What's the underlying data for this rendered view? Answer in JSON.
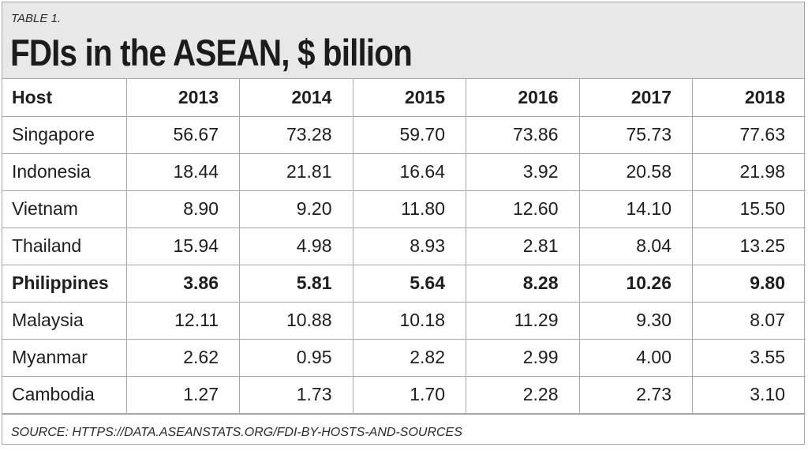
{
  "header": {
    "kicker": "TABLE 1.",
    "title": "FDIs in the ASEAN, $ billion"
  },
  "table": {
    "columns": [
      "Host",
      "2013",
      "2014",
      "2015",
      "2016",
      "2017",
      "2018"
    ],
    "rows": [
      {
        "host": "Singapore",
        "bold": false,
        "values": [
          "56.67",
          "73.28",
          "59.70",
          "73.86",
          "75.73",
          "77.63"
        ]
      },
      {
        "host": "Indonesia",
        "bold": false,
        "values": [
          "18.44",
          "21.81",
          "16.64",
          "3.92",
          "20.58",
          "21.98"
        ]
      },
      {
        "host": "Vietnam",
        "bold": false,
        "values": [
          "8.90",
          "9.20",
          "11.80",
          "12.60",
          "14.10",
          "15.50"
        ]
      },
      {
        "host": "Thailand",
        "bold": false,
        "values": [
          "15.94",
          "4.98",
          "8.93",
          "2.81",
          "8.04",
          "13.25"
        ]
      },
      {
        "host": "Philippines",
        "bold": true,
        "values": [
          "3.86",
          "5.81",
          "5.64",
          "8.28",
          "10.26",
          "9.80"
        ]
      },
      {
        "host": "Malaysia",
        "bold": false,
        "values": [
          "12.11",
          "10.88",
          "10.18",
          "11.29",
          "9.30",
          "8.07"
        ]
      },
      {
        "host": "Myanmar",
        "bold": false,
        "values": [
          "2.62",
          "0.95",
          "2.82",
          "2.99",
          "4.00",
          "3.55"
        ]
      },
      {
        "host": "Cambodia",
        "bold": false,
        "values": [
          "1.27",
          "1.73",
          "1.70",
          "2.28",
          "2.73",
          "3.10"
        ]
      }
    ]
  },
  "source": "SOURCE: HTTPS://DATA.ASEANSTATS.ORG/FDI-BY-HOSTS-AND-SOURCES",
  "colors": {
    "header_bg": "#e8e8e8",
    "border": "#a8a8a8",
    "text": "#1e1e1e"
  },
  "chart_data": {
    "type": "table",
    "title": "FDIs in the ASEAN, $ billion",
    "subtitle": "TABLE 1.",
    "categories": [
      "2013",
      "2014",
      "2015",
      "2016",
      "2017",
      "2018"
    ],
    "row_header": "Host",
    "series": [
      {
        "name": "Singapore",
        "values": [
          56.67,
          73.28,
          59.7,
          73.86,
          75.73,
          77.63
        ]
      },
      {
        "name": "Indonesia",
        "values": [
          18.44,
          21.81,
          16.64,
          3.92,
          20.58,
          21.98
        ]
      },
      {
        "name": "Vietnam",
        "values": [
          8.9,
          9.2,
          11.8,
          12.6,
          14.1,
          15.5
        ]
      },
      {
        "name": "Thailand",
        "values": [
          15.94,
          4.98,
          8.93,
          2.81,
          8.04,
          13.25
        ]
      },
      {
        "name": "Philippines",
        "values": [
          3.86,
          5.81,
          5.64,
          8.28,
          10.26,
          9.8
        ],
        "highlighted": true
      },
      {
        "name": "Malaysia",
        "values": [
          12.11,
          10.88,
          10.18,
          11.29,
          9.3,
          8.07
        ]
      },
      {
        "name": "Myanmar",
        "values": [
          2.62,
          0.95,
          2.82,
          2.99,
          4.0,
          3.55
        ]
      },
      {
        "name": "Cambodia",
        "values": [
          1.27,
          1.73,
          1.7,
          2.28,
          2.73,
          3.1
        ]
      }
    ],
    "unit": "$ billion",
    "source": "SOURCE: HTTPS://DATA.ASEANSTATS.ORG/FDI-BY-HOSTS-AND-SOURCES"
  }
}
